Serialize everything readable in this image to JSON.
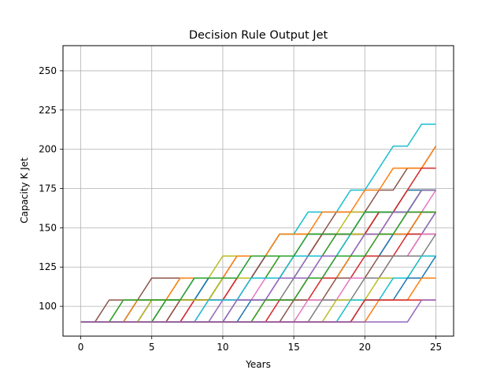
{
  "chart_data": {
    "type": "line",
    "title": "Decision Rule Output Jet",
    "xlabel": "Years",
    "ylabel": "Capacity K Jet",
    "xlim": [
      -1.25,
      26.25
    ],
    "ylim": [
      81,
      266
    ],
    "xticks": [
      0,
      5,
      10,
      15,
      20,
      25
    ],
    "yticks": [
      100,
      125,
      150,
      175,
      200,
      225,
      250
    ],
    "grid": true,
    "legend": "none",
    "palette": [
      "#1f77b4",
      "#ff7f0e",
      "#2ca02c",
      "#d62728",
      "#9467bd",
      "#8c564b",
      "#e377c2",
      "#7f7f7f",
      "#bcbd22",
      "#17becf"
    ],
    "base_capacity": 90,
    "step_size": 14,
    "series": [
      {
        "upgrades": [
          4,
          8,
          15,
          19,
          24
        ]
      },
      {
        "upgrades": [
          5,
          9,
          14,
          18,
          22
        ]
      },
      {
        "upgrades": [
          6,
          10,
          16,
          20,
          25
        ]
      },
      {
        "upgrades": [
          7,
          11,
          13,
          17,
          21
        ]
      },
      {
        "upgrades": [
          5,
          12,
          16,
          19,
          23
        ]
      },
      {
        "upgrades": [
          2,
          5,
          11,
          14,
          18,
          21,
          23,
          25
        ]
      },
      {
        "upgrades": [
          8,
          12,
          15,
          18,
          22
        ]
      },
      {
        "upgrades": [
          6,
          9,
          13,
          17,
          21,
          24
        ]
      },
      {
        "upgrades": [
          3,
          7,
          10,
          14,
          19,
          23
        ]
      },
      {
        "upgrades": [
          4,
          9,
          12,
          14,
          16,
          19,
          21,
          22,
          24
        ]
      },
      {
        "upgrades": [
          5,
          9,
          13,
          16,
          20,
          23
        ]
      },
      {
        "upgrades": [
          4,
          7,
          11,
          14,
          17,
          20,
          22,
          25
        ]
      },
      {
        "upgrades": [
          6,
          10,
          14,
          18,
          21,
          24
        ]
      },
      {
        "upgrades": [
          8,
          11,
          15,
          17,
          21,
          23,
          24
        ]
      },
      {
        "upgrades": [
          10,
          14,
          18,
          22,
          25
        ]
      },
      {
        "upgrades": [
          7,
          10,
          13,
          17,
          20,
          24
        ]
      },
      {
        "upgrades": [
          9,
          13,
          17,
          20,
          23,
          25
        ]
      },
      {
        "upgrades": [
          11,
          15,
          19,
          22,
          24
        ]
      },
      {
        "upgrades": [
          5,
          10,
          15,
          19,
          23
        ]
      },
      {
        "upgrades": [
          9,
          12,
          15,
          19,
          20,
          24
        ]
      },
      {
        "upgrades": [
          12,
          16,
          19,
          22,
          24
        ]
      },
      {
        "upgrades": [
          13,
          16,
          19,
          21,
          24
        ]
      },
      {
        "upgrades": [
          3,
          8,
          12,
          16,
          20,
          24
        ]
      },
      {
        "upgrades": [
          14,
          17,
          20,
          23
        ]
      },
      {
        "upgrades": [
          11,
          14,
          17,
          20,
          22,
          24
        ]
      },
      {
        "upgrades": [
          15,
          18,
          21,
          24
        ]
      },
      {
        "upgrades": [
          16,
          19,
          22,
          24
        ]
      },
      {
        "upgrades": [
          17,
          20,
          22,
          25
        ]
      },
      {
        "upgrades": [
          18,
          21,
          24
        ]
      },
      {
        "upgrades": [
          19,
          22,
          24
        ]
      },
      {
        "upgrades": [
          20,
          23,
          25
        ]
      },
      {
        "upgrades": [
          21,
          24
        ]
      },
      {
        "upgrades": [
          13,
          16,
          18,
          21,
          23
        ]
      },
      {
        "upgrades": [
          20
        ]
      },
      {
        "upgrades": [
          24
        ]
      }
    ]
  }
}
